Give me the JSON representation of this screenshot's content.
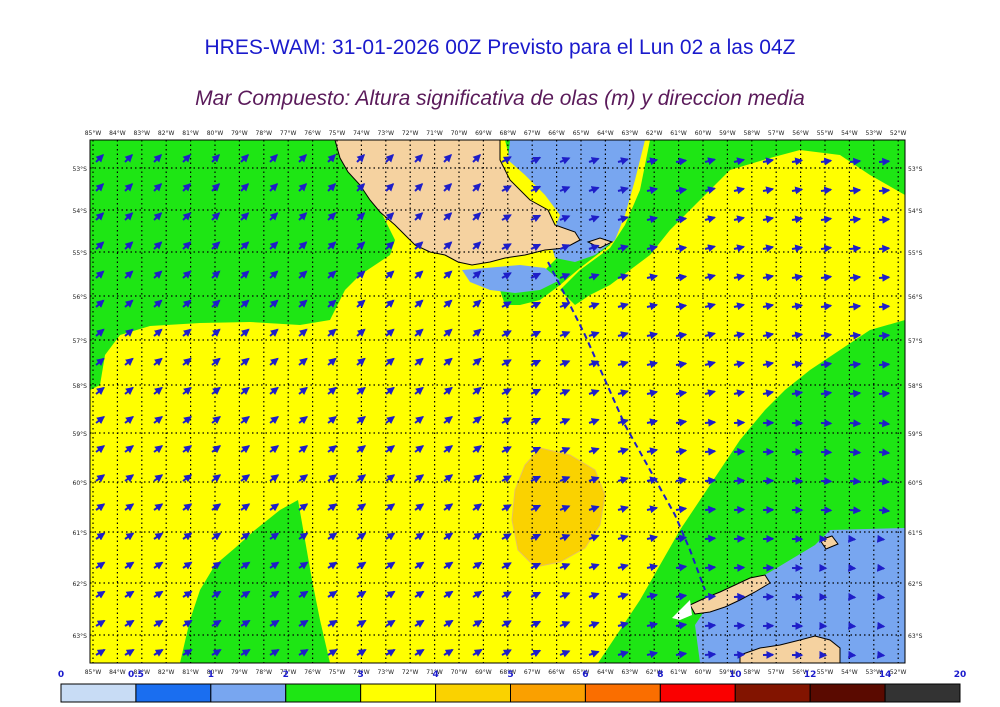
{
  "title": "HRES-WAM: 31-01-2026 00Z Previsto para el Lun 02 a las 04Z",
  "subtitle": "Mar Compuesto: Altura significativa de olas (m) y direccion media",
  "top_lon_labels": [
    "85°W",
    "84°W",
    "83°W",
    "82°W",
    "81°W",
    "80°W",
    "79°W",
    "78°W",
    "77°W",
    "76°W",
    "75°W",
    "74°W",
    "73°W",
    "72°W",
    "71°W",
    "70°W",
    "69°W",
    "68°W",
    "67°W",
    "66°W",
    "65°W",
    "64°W",
    "63°W",
    "62°W",
    "61°W",
    "60°W",
    "59°W",
    "58°W",
    "57°W",
    "56°W",
    "55°W",
    "54°W",
    "53°W",
    "52°W"
  ],
  "bottom_lon_labels": [
    "85°W",
    "84°W",
    "83°W",
    "82°W",
    "81°W",
    "80°W",
    "79°W",
    "78°W",
    "77°W",
    "76°W",
    "75°W",
    "74°W",
    "73°W",
    "72°W",
    "71°W",
    "70°W",
    "69°W",
    "68°W",
    "67°W",
    "66°W",
    "65°W",
    "64°W",
    "63°W",
    "62°W",
    "61°W",
    "60°W",
    "59°W",
    "58°W",
    "57°W",
    "56°W",
    "55°W",
    "54°W",
    "53°W",
    "52°W"
  ],
  "lat_labels": [
    "53°S",
    "54°S",
    "55°S",
    "56°S",
    "57°S",
    "58°S",
    "59°S",
    "60°S",
    "61°S",
    "62°S",
    "63°S"
  ],
  "colorbar": {
    "ticks": [
      "0",
      "0.5",
      "1",
      "2",
      "3",
      "4",
      "5",
      "6",
      "8",
      "10",
      "12",
      "14",
      "20"
    ],
    "colors": [
      "#c8dcf5",
      "#1a6ef0",
      "#78a6f0",
      "#1ee614",
      "#ffff00",
      "#fad200",
      "#faa000",
      "#fa6e00",
      "#fa0000",
      "#821400",
      "#5a0a00",
      "#333333"
    ]
  },
  "legend_colors": {
    "green_0_5_2": "#1ee614",
    "yellow_3_4": "#ffff00",
    "gold_4_5": "#fad200",
    "light_blue_1_2": "#78a6f0",
    "land": "#f5d2a0",
    "arrow": "#1e1ec8"
  }
}
